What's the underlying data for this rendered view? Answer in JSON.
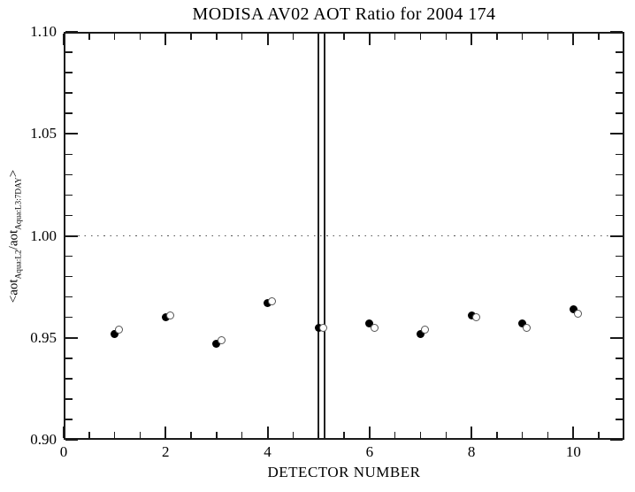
{
  "title": "MODISA AV02 AOT Ratio for 2004 174",
  "axes": {
    "x": {
      "label": "DETECTOR NUMBER"
    },
    "y": {
      "label_parts": [
        "<aot",
        "Aqua:L2",
        "/aot",
        "Aqua:L3:7DAY",
        ">"
      ]
    }
  },
  "colors": {
    "foreground": "#000000",
    "background": "#ffffff",
    "open_marker_stroke": "#555555",
    "dotted_reference_line": "#555555"
  },
  "chart_data": {
    "type": "scatter",
    "title": "MODISA AV02 AOT Ratio for 2004 174",
    "xlabel": "DETECTOR NUMBER",
    "ylabel": "<aot_Aqua:L2/aot_Aqua:L3:7DAY>",
    "x": [
      1,
      2,
      3,
      4,
      5,
      6,
      7,
      8,
      9,
      10
    ],
    "series": [
      {
        "name": "aot-ratio-filled-circles",
        "marker": "filled-circle",
        "x_offset": 0,
        "values": [
          0.952,
          0.96,
          0.947,
          0.967,
          0.955,
          0.957,
          0.952,
          0.961,
          0.957,
          0.964
        ]
      },
      {
        "name": "aot-ratio-open-circles",
        "marker": "open-circle",
        "x_offset": 0.09,
        "values": [
          0.954,
          0.961,
          0.949,
          0.968,
          0.955,
          0.955,
          0.954,
          0.96,
          0.955,
          0.962
        ]
      }
    ],
    "xlim": [
      0,
      11
    ],
    "ylim": [
      0.9,
      1.1
    ],
    "x_tick_values": [
      0,
      2,
      4,
      6,
      8,
      10
    ],
    "x_tick_labels": [
      "0",
      "2",
      "4",
      "6",
      "8",
      "10"
    ],
    "x_minor_step": 0.5,
    "y_tick_values": [
      0.9,
      0.95,
      1.0,
      1.05,
      1.1
    ],
    "y_tick_labels": [
      "0.90",
      "0.95",
      "1.00",
      "1.05",
      "1.10"
    ],
    "y_minor_step": 0.01,
    "reference_line": {
      "y": 1.0,
      "style": "dotted"
    },
    "vertical_lines_x": [
      5.0,
      5.12
    ],
    "grid": false,
    "legend": null,
    "frame": "box-with-inward-ticks-on-all-sides"
  }
}
